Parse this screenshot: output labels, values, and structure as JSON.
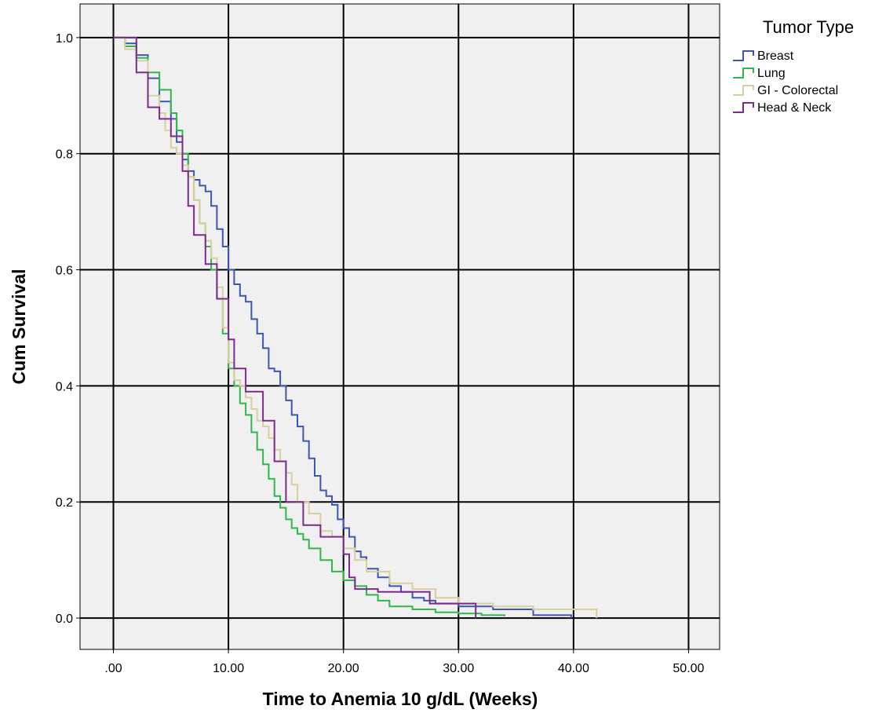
{
  "chart_data": {
    "type": "line",
    "step": true,
    "xlabel": "Time to Anemia 10 g/dL (Weeks)",
    "ylabel": "Cum Survival",
    "xlim": [
      -2.9,
      52.7
    ],
    "ylim": [
      -0.054,
      1.058
    ],
    "x_ticks": [
      0,
      10,
      20,
      30,
      40,
      50
    ],
    "x_tick_labels": [
      ".00",
      "10.00",
      "20.00",
      "30.00",
      "40.00",
      "50.00"
    ],
    "y_ticks": [
      0.0,
      0.2,
      0.4,
      0.6,
      0.8,
      1.0
    ],
    "y_tick_labels": [
      "0.0",
      "0.2",
      "0.4",
      "0.6",
      "0.8",
      "1.0"
    ],
    "grid": true,
    "legend": {
      "title": "Tumor Type",
      "position": "top-right"
    },
    "series": [
      {
        "name": "Breast",
        "color": "#3b56b5",
        "x": [
          0,
          1.0,
          2.0,
          3.0,
          4.0,
          5.0,
          5.5,
          6.0,
          6.5,
          7.0,
          7.5,
          8.0,
          8.5,
          9.0,
          9.5,
          10.0,
          10.5,
          11.0,
          11.5,
          12.0,
          12.5,
          13.0,
          13.5,
          14.0,
          14.5,
          15.0,
          15.5,
          16.0,
          16.5,
          17.0,
          17.5,
          18.0,
          18.5,
          19.0,
          19.5,
          20.0,
          20.5,
          21.0,
          21.5,
          22.0,
          23.0,
          24.0,
          25.0,
          26.0,
          27.0,
          28.0,
          30.0,
          33.0,
          36.5,
          39.8
        ],
        "y": [
          1.0,
          0.99,
          0.97,
          0.93,
          0.89,
          0.86,
          0.82,
          0.79,
          0.77,
          0.755,
          0.745,
          0.735,
          0.71,
          0.67,
          0.64,
          0.6,
          0.575,
          0.555,
          0.545,
          0.515,
          0.49,
          0.465,
          0.43,
          0.425,
          0.4,
          0.375,
          0.35,
          0.33,
          0.305,
          0.275,
          0.245,
          0.22,
          0.21,
          0.195,
          0.17,
          0.155,
          0.14,
          0.115,
          0.105,
          0.085,
          0.07,
          0.055,
          0.045,
          0.035,
          0.03,
          0.025,
          0.02,
          0.015,
          0.005,
          0.0
        ]
      },
      {
        "name": "Lung",
        "color": "#2fb84a",
        "x": [
          0,
          1.0,
          2.0,
          3.0,
          4.0,
          5.0,
          5.5,
          6.0,
          6.5,
          7.0,
          7.5,
          8.0,
          8.5,
          9.0,
          9.5,
          10.0,
          10.5,
          11.0,
          11.5,
          12.0,
          12.5,
          13.0,
          13.5,
          14.0,
          14.5,
          15.0,
          15.5,
          16.0,
          16.5,
          17.0,
          18.0,
          19.0,
          20.0,
          21.0,
          22.0,
          23.0,
          24.0,
          26.0,
          28.0,
          30.0,
          32.0,
          34.0
        ],
        "y": [
          1.0,
          0.985,
          0.965,
          0.94,
          0.91,
          0.87,
          0.84,
          0.8,
          0.76,
          0.72,
          0.68,
          0.64,
          0.6,
          0.55,
          0.49,
          0.43,
          0.4,
          0.37,
          0.35,
          0.32,
          0.29,
          0.265,
          0.24,
          0.21,
          0.19,
          0.17,
          0.155,
          0.145,
          0.135,
          0.12,
          0.1,
          0.08,
          0.065,
          0.055,
          0.04,
          0.03,
          0.02,
          0.015,
          0.01,
          0.008,
          0.005,
          0.003
        ]
      },
      {
        "name": "GI - Colorectal",
        "color": "#d8cf9c",
        "x": [
          0,
          1.0,
          2.0,
          3.0,
          4.0,
          4.5,
          5.0,
          5.5,
          6.0,
          6.5,
          7.0,
          7.5,
          8.0,
          8.5,
          9.0,
          9.5,
          10.0,
          10.5,
          11.0,
          11.5,
          12.0,
          12.5,
          13.0,
          13.5,
          14.0,
          14.5,
          15.0,
          15.5,
          16.0,
          17.0,
          18.0,
          19.0,
          20.0,
          21.0,
          22.0,
          24.0,
          26.0,
          28.0,
          30.0,
          33.0,
          36.5,
          42.0
        ],
        "y": [
          1.0,
          0.98,
          0.96,
          0.9,
          0.87,
          0.84,
          0.81,
          0.8,
          0.78,
          0.76,
          0.72,
          0.68,
          0.65,
          0.62,
          0.57,
          0.5,
          0.44,
          0.41,
          0.4,
          0.38,
          0.36,
          0.34,
          0.33,
          0.31,
          0.29,
          0.27,
          0.25,
          0.23,
          0.2,
          0.18,
          0.15,
          0.14,
          0.12,
          0.1,
          0.08,
          0.06,
          0.05,
          0.035,
          0.025,
          0.02,
          0.015,
          0.0
        ]
      },
      {
        "name": "Head & Neck",
        "color": "#7e2a8c",
        "x": [
          0,
          2.0,
          3.0,
          4.0,
          5.0,
          6.0,
          6.5,
          7.0,
          8.0,
          9.0,
          10.0,
          10.5,
          11.5,
          13.0,
          14.0,
          15.0,
          16.5,
          18.0,
          20.0,
          20.5,
          21.0,
          23.0,
          27.5,
          31.5
        ],
        "y": [
          1.0,
          0.94,
          0.88,
          0.86,
          0.83,
          0.77,
          0.71,
          0.66,
          0.61,
          0.55,
          0.48,
          0.43,
          0.39,
          0.34,
          0.27,
          0.2,
          0.16,
          0.14,
          0.11,
          0.07,
          0.05,
          0.045,
          0.025,
          0.0
        ]
      }
    ]
  }
}
